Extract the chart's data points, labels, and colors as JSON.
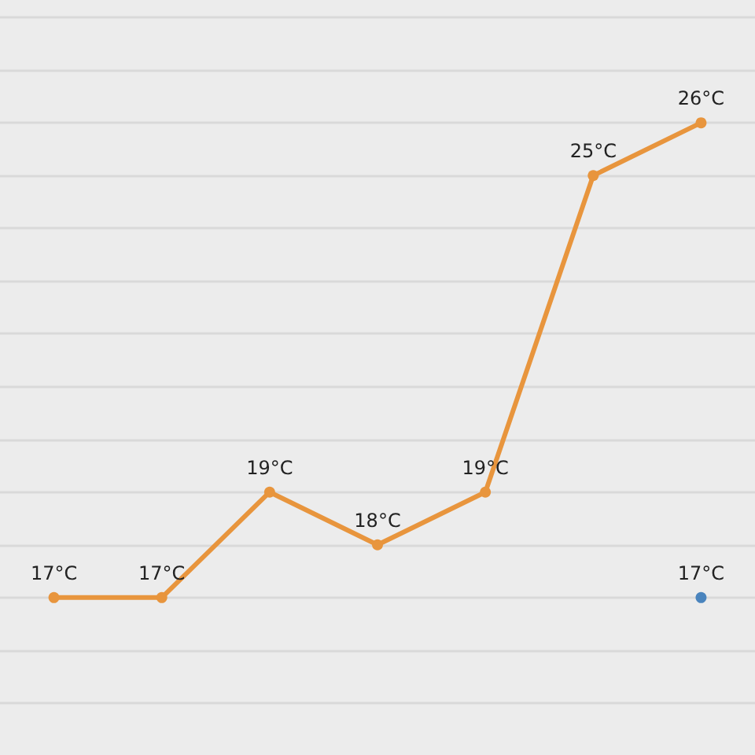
{
  "chart_data": {
    "type": "line",
    "categories": [
      null,
      null,
      null,
      null,
      null,
      null,
      null
    ],
    "series": [
      {
        "color": "#e8953d",
        "values": [
          17,
          17,
          19,
          18,
          19,
          25,
          26
        ],
        "value_labels": [
          "17°C",
          "17°C",
          "19°C",
          "18°C",
          "19°C",
          "25°C",
          "26°C"
        ]
      },
      {
        "color": "#4a84bd",
        "values": [
          null,
          null,
          null,
          null,
          null,
          null,
          17
        ],
        "value_labels": [
          null,
          null,
          null,
          null,
          null,
          null,
          "17°C"
        ]
      }
    ],
    "yticks": [
      {
        "value": 15,
        "label": null
      },
      {
        "value": 16,
        "label": null
      },
      {
        "value": 17,
        "label": null
      },
      {
        "value": 18,
        "label": null
      },
      {
        "value": 19,
        "label": null
      },
      {
        "value": 20,
        "label": null
      },
      {
        "value": 21,
        "label": null
      },
      {
        "value": 22,
        "label": null
      },
      {
        "value": 23,
        "label": null
      },
      {
        "value": 24,
        "label": null
      },
      {
        "value": 25,
        "label": null
      },
      {
        "value": 26,
        "label": null
      },
      {
        "value": 27,
        "label": null
      },
      {
        "value": 28,
        "label": null
      }
    ],
    "grid": "y",
    "tick_labels": false,
    "marker": "circle",
    "line_style": "solid"
  }
}
